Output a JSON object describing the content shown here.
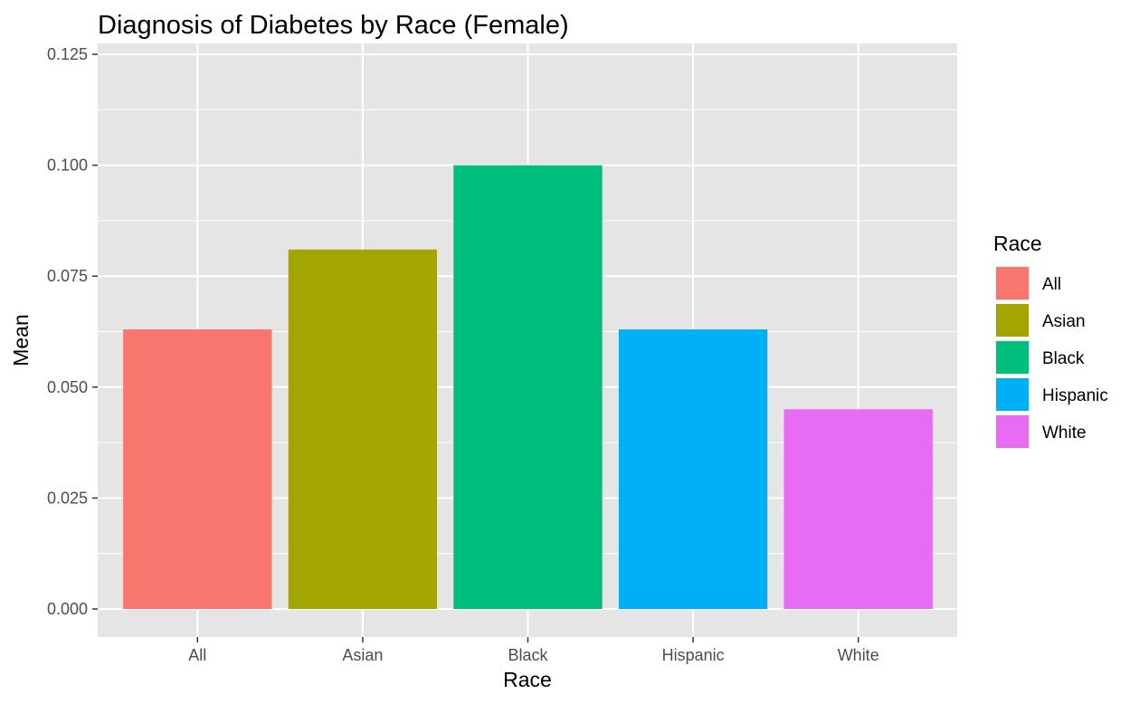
{
  "chart_data": {
    "type": "bar",
    "title": "Diagnosis of Diabetes by Race (Female)",
    "xlabel": "Race",
    "ylabel": "Mean",
    "categories": [
      "All",
      "Asian",
      "Black",
      "Hispanic",
      "White"
    ],
    "values": [
      0.063,
      0.081,
      0.1,
      0.063,
      0.045
    ],
    "colors": [
      "#F8766D",
      "#A3A500",
      "#00BF7D",
      "#00B0F6",
      "#E76BF3"
    ],
    "ylim": [
      0,
      0.125
    ],
    "yticks": [
      0.0,
      0.025,
      0.05,
      0.075,
      0.1,
      0.125
    ],
    "ytick_labels": [
      "0.000",
      "0.025",
      "0.050",
      "0.075",
      "0.100",
      "0.125"
    ],
    "grid": true,
    "panel_background": "#E5E5E5",
    "gridline_color": "#FFFFFF",
    "legend": {
      "title": "Race",
      "position": "right",
      "entries": [
        "All",
        "Asian",
        "Black",
        "Hispanic",
        "White"
      ]
    }
  }
}
